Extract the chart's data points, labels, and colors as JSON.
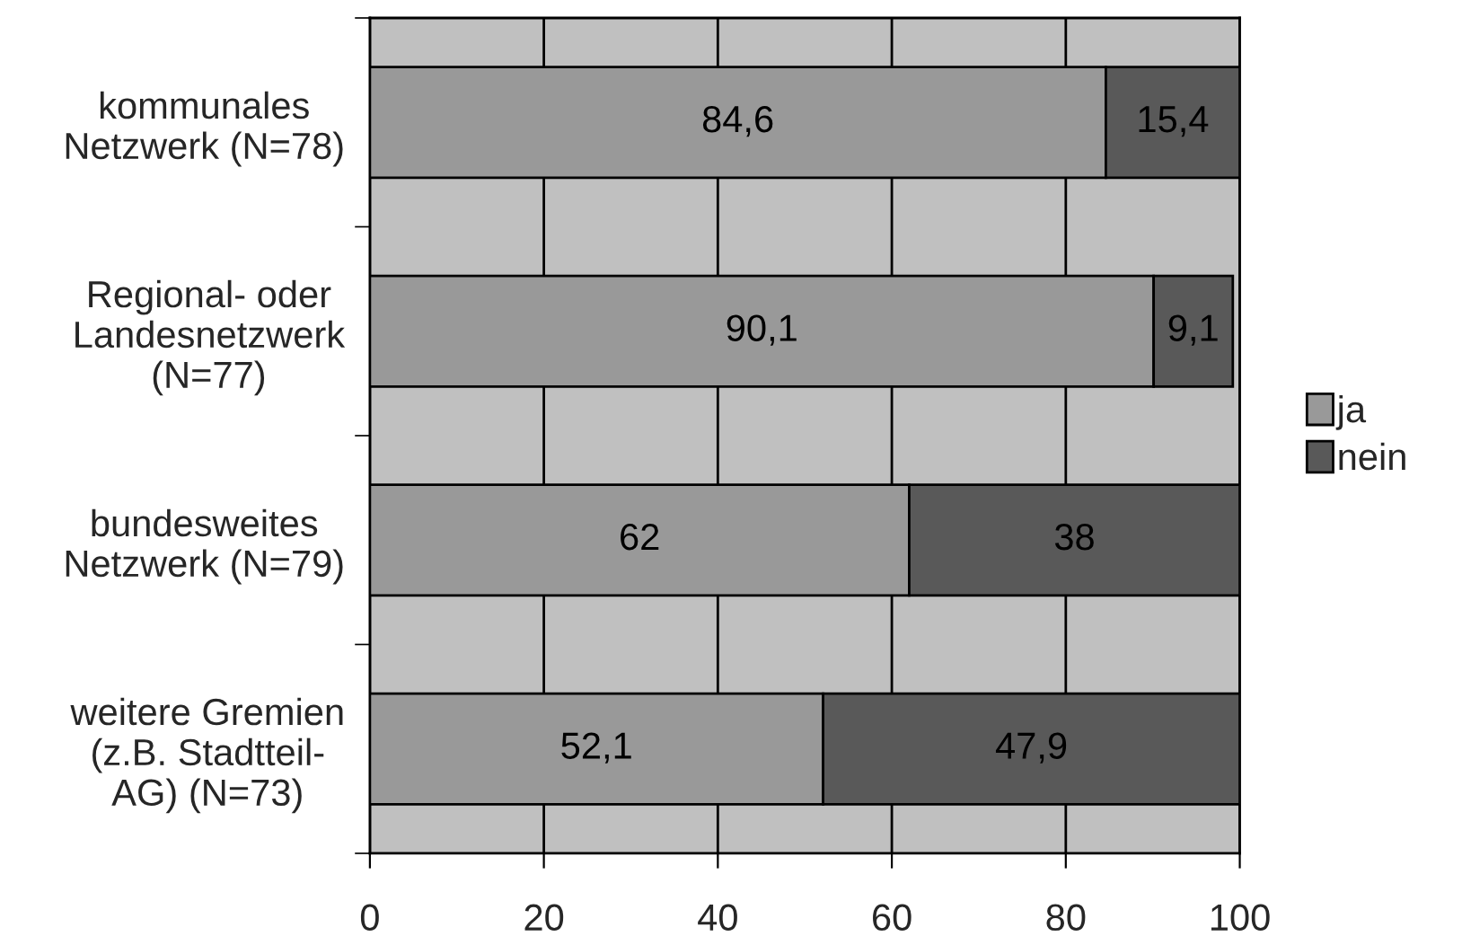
{
  "chart_data": {
    "type": "bar",
    "orientation": "horizontal",
    "stacked": true,
    "categories": [
      "kommunales\nNetzwerk (N=78)",
      "Regional- oder\nLandesnetzwerk\n(N=77)",
      "bundesweites\nNetzwerk (N=79)",
      "weitere Gremien\n(z.B. Stadtteil-\nAG) (N=73)"
    ],
    "series": [
      {
        "name": "ja",
        "color": "#999999",
        "values": [
          84.6,
          90.1,
          62,
          52.1
        ],
        "value_labels": [
          "84,6",
          "90,1",
          "62",
          "52,1"
        ]
      },
      {
        "name": "nein",
        "color": "#595959",
        "values": [
          15.4,
          9.1,
          38,
          47.9
        ],
        "value_labels": [
          "15,4",
          "9,1",
          "38",
          "47,9"
        ]
      }
    ],
    "xlim": [
      0,
      100
    ],
    "xticks": [
      0,
      20,
      40,
      60,
      80,
      100
    ],
    "grid": "x",
    "legend": "right"
  }
}
